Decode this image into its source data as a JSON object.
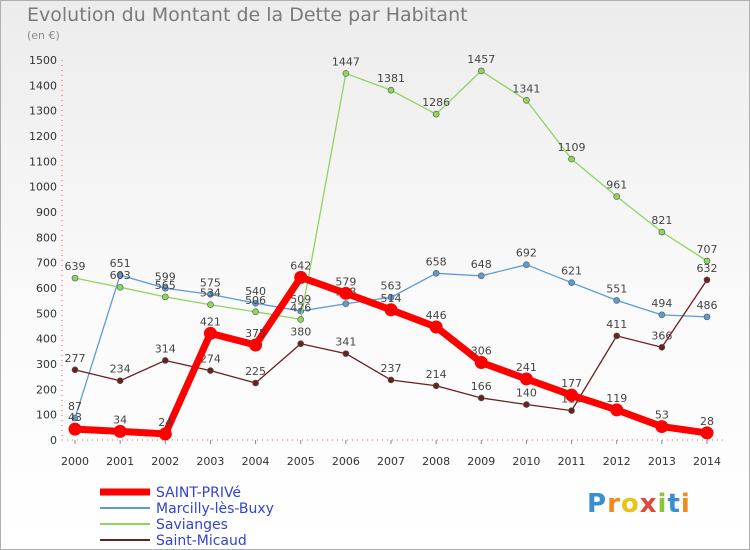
{
  "chart_data": {
    "type": "line",
    "title": "Evolution du Montant de la Dette par Habitant",
    "subtitle": "(en €)",
    "x": [
      "2000",
      "2001",
      "2002",
      "2003",
      "2004",
      "2005",
      "2006",
      "2007",
      "2008",
      "2009",
      "2010",
      "2011",
      "2012",
      "2013",
      "2014"
    ],
    "yticks": [
      0,
      100,
      200,
      300,
      400,
      500,
      600,
      700,
      800,
      900,
      1000,
      1100,
      1200,
      1300,
      1400,
      1500
    ],
    "ylim": [
      0,
      1500
    ],
    "grid": false,
    "legend_position": "bottom-left",
    "series": [
      {
        "name": "SAINT-PRIVé",
        "color": "#ff0000",
        "bold": true,
        "values": [
          43,
          34,
          24,
          421,
          375,
          642,
          579,
          514,
          446,
          306,
          241,
          177,
          119,
          53,
          28
        ]
      },
      {
        "name": "Marcilly-lès-Buxy",
        "color": "#5b9bd5",
        "values": [
          87,
          651,
          599,
          575,
          540,
          509,
          538,
          563,
          658,
          648,
          692,
          621,
          551,
          494,
          486
        ]
      },
      {
        "name": "Savianges",
        "color": "#8fd45f",
        "values": [
          639,
          603,
          565,
          534,
          506,
          476,
          1447,
          1381,
          1286,
          1457,
          1341,
          1109,
          961,
          821,
          707
        ]
      },
      {
        "name": "Saint-Micaud",
        "color": "#6b1f1f",
        "values": [
          277,
          234,
          314,
          274,
          225,
          380,
          341,
          237,
          214,
          166,
          140,
          116,
          411,
          366,
          632
        ]
      }
    ]
  },
  "logo": {
    "letters": [
      "P",
      "r",
      "o",
      "x",
      "i",
      "t",
      "i"
    ]
  }
}
